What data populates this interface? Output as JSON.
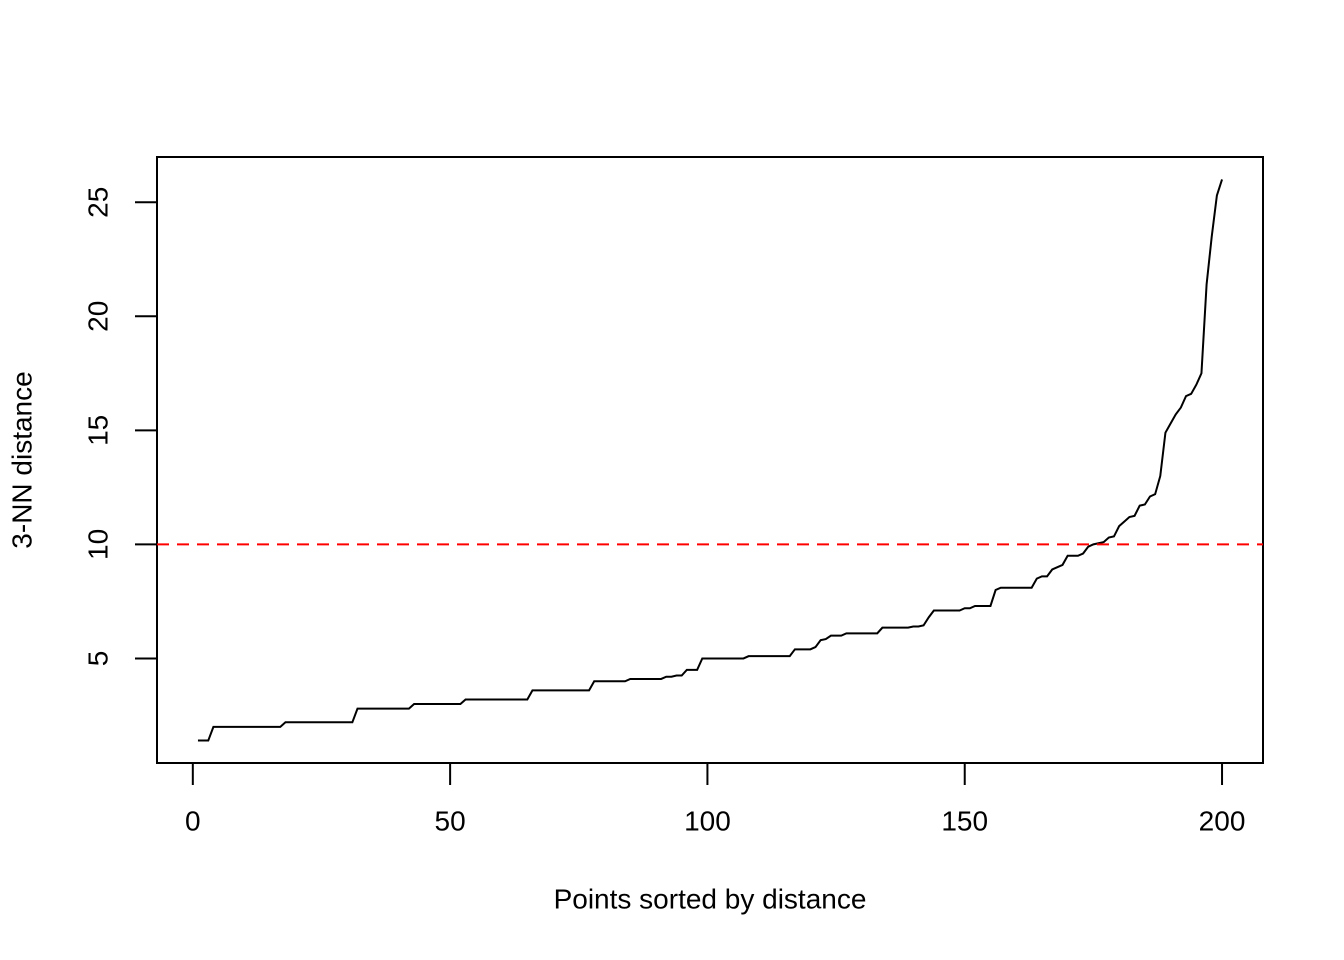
{
  "chart_data": {
    "type": "line",
    "xlabel": "Points sorted by distance",
    "ylabel": "3-NN distance",
    "x": [
      1,
      2,
      3,
      4,
      5,
      6,
      7,
      8,
      9,
      10,
      11,
      12,
      13,
      14,
      15,
      16,
      17,
      18,
      19,
      20,
      21,
      22,
      23,
      24,
      25,
      26,
      27,
      28,
      29,
      30,
      31,
      32,
      33,
      34,
      35,
      36,
      37,
      38,
      39,
      40,
      41,
      42,
      43,
      44,
      45,
      46,
      47,
      48,
      49,
      50,
      51,
      52,
      53,
      54,
      55,
      56,
      57,
      58,
      59,
      60,
      61,
      62,
      63,
      64,
      65,
      66,
      67,
      68,
      69,
      70,
      71,
      72,
      73,
      74,
      75,
      76,
      77,
      78,
      79,
      80,
      81,
      82,
      83,
      84,
      85,
      86,
      87,
      88,
      89,
      90,
      91,
      92,
      93,
      94,
      95,
      96,
      97,
      98,
      99,
      100,
      101,
      102,
      103,
      104,
      105,
      106,
      107,
      108,
      109,
      110,
      111,
      112,
      113,
      114,
      115,
      116,
      117,
      118,
      119,
      120,
      121,
      122,
      123,
      124,
      125,
      126,
      127,
      128,
      129,
      130,
      131,
      132,
      133,
      134,
      135,
      136,
      137,
      138,
      139,
      140,
      141,
      142,
      143,
      144,
      145,
      146,
      147,
      148,
      149,
      150,
      151,
      152,
      153,
      154,
      155,
      156,
      157,
      158,
      159,
      160,
      161,
      162,
      163,
      164,
      165,
      166,
      167,
      168,
      169,
      170,
      171,
      172,
      173,
      174,
      175,
      176,
      177,
      178,
      179,
      180,
      181,
      182,
      183,
      184,
      185,
      186,
      187,
      188,
      189,
      190,
      191,
      192,
      193,
      194,
      195,
      196,
      197,
      198,
      199,
      200
    ],
    "series": [
      {
        "color": "#000000",
        "values": [
          1.4,
          1.4,
          1.4,
          2.0,
          2.0,
          2.0,
          2.0,
          2.0,
          2.0,
          2.0,
          2.0,
          2.0,
          2.0,
          2.0,
          2.0,
          2.0,
          2.0,
          2.2,
          2.2,
          2.2,
          2.2,
          2.2,
          2.2,
          2.2,
          2.2,
          2.2,
          2.2,
          2.2,
          2.2,
          2.2,
          2.2,
          2.8,
          2.8,
          2.8,
          2.8,
          2.8,
          2.8,
          2.8,
          2.8,
          2.8,
          2.8,
          2.8,
          3.0,
          3.0,
          3.0,
          3.0,
          3.0,
          3.0,
          3.0,
          3.0,
          3.0,
          3.0,
          3.2,
          3.2,
          3.2,
          3.2,
          3.2,
          3.2,
          3.2,
          3.2,
          3.2,
          3.2,
          3.2,
          3.2,
          3.2,
          3.6,
          3.6,
          3.6,
          3.6,
          3.6,
          3.6,
          3.6,
          3.6,
          3.6,
          3.6,
          3.6,
          3.6,
          4.0,
          4.0,
          4.0,
          4.0,
          4.0,
          4.0,
          4.0,
          4.1,
          4.1,
          4.1,
          4.1,
          4.1,
          4.1,
          4.1,
          4.2,
          4.2,
          4.25,
          4.25,
          4.5,
          4.5,
          4.5,
          5.0,
          5.0,
          5.0,
          5.0,
          5.0,
          5.0,
          5.0,
          5.0,
          5.0,
          5.1,
          5.1,
          5.1,
          5.1,
          5.1,
          5.1,
          5.1,
          5.1,
          5.1,
          5.4,
          5.4,
          5.4,
          5.4,
          5.5,
          5.8,
          5.85,
          6.0,
          6.0,
          6.0,
          6.1,
          6.1,
          6.1,
          6.1,
          6.1,
          6.1,
          6.1,
          6.35,
          6.35,
          6.35,
          6.35,
          6.35,
          6.35,
          6.4,
          6.4,
          6.45,
          6.8,
          7.1,
          7.1,
          7.1,
          7.1,
          7.1,
          7.1,
          7.2,
          7.2,
          7.3,
          7.3,
          7.3,
          7.3,
          8.0,
          8.1,
          8.1,
          8.1,
          8.1,
          8.1,
          8.1,
          8.1,
          8.5,
          8.6,
          8.6,
          8.9,
          9.0,
          9.1,
          9.5,
          9.5,
          9.5,
          9.6,
          9.9,
          10.0,
          10.05,
          10.1,
          10.3,
          10.35,
          10.8,
          11.0,
          11.2,
          11.25,
          11.7,
          11.75,
          12.1,
          12.2,
          13.0,
          14.9,
          15.3,
          15.7,
          16.0,
          16.5,
          16.6,
          17.0,
          17.5,
          21.4,
          23.5,
          25.3,
          26.0
        ]
      }
    ],
    "xlim": [
      -6.96,
      207.96
    ],
    "ylim": [
      0.416,
      26.984
    ],
    "xticks": [
      0,
      50,
      100,
      150,
      200
    ],
    "yticks": [
      5,
      10,
      15,
      20,
      25
    ],
    "reference_line": {
      "y": 10,
      "color": "#ff0000",
      "style": "dashed"
    }
  }
}
